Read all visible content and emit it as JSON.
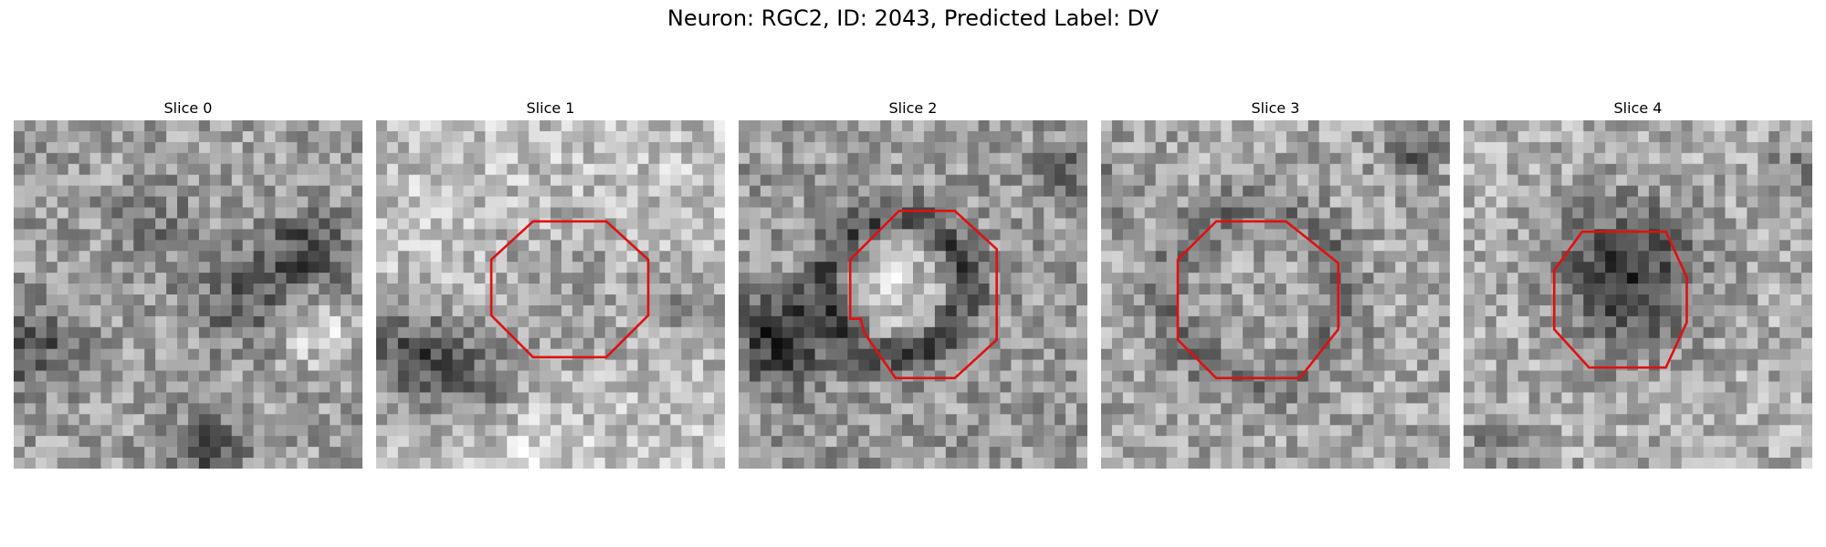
{
  "figure": {
    "title": "Neuron: RGC2, ID: 2043, Predicted Label: DV"
  },
  "panels": [
    {
      "title": "Slice 0",
      "has_contour": false
    },
    {
      "title": "Slice 1",
      "has_contour": true
    },
    {
      "title": "Slice 2",
      "has_contour": true
    },
    {
      "title": "Slice 3",
      "has_contour": true
    },
    {
      "title": "Slice 4",
      "has_contour": true
    }
  ],
  "colors": {
    "contour": "#e01010",
    "background": "#ffffff"
  },
  "image_grid": {
    "pixels_per_side": 32,
    "colormap": "grayscale"
  }
}
